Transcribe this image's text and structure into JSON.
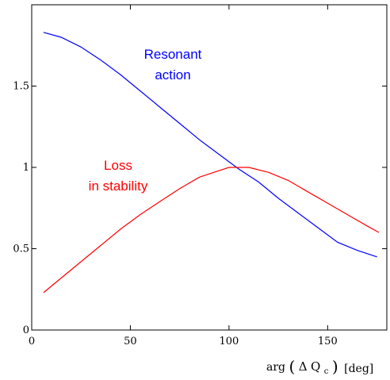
{
  "chart_data": {
    "type": "line",
    "title": "",
    "xlim": [
      0,
      180
    ],
    "ylim": [
      0,
      2
    ],
    "x_ticks": [
      0,
      50,
      100,
      150
    ],
    "y_ticks": [
      0,
      0.5,
      1,
      1.5
    ],
    "x_tick_labels": [
      "0",
      "50",
      "100",
      "150"
    ],
    "y_tick_labels": [
      "0",
      "0.5",
      "1",
      "1.5"
    ],
    "grid": false,
    "xlabel": {
      "prefix": "arg",
      "delta": "Δ",
      "q": "Q",
      "sub": "c",
      "suffix": "[deg]"
    },
    "annotations": {
      "resonant_line1": "Resonant",
      "resonant_line2": "action",
      "loss_line1": "Loss",
      "loss_line2": "in stability"
    },
    "series": [
      {
        "color": "#0000ff",
        "x": [
          6,
          15,
          25,
          35,
          45,
          55,
          65,
          75,
          85,
          95,
          105,
          115,
          125,
          135,
          145,
          155,
          165,
          175
        ],
        "y": [
          1.83,
          1.8,
          1.74,
          1.66,
          1.57,
          1.47,
          1.37,
          1.27,
          1.17,
          1.08,
          0.99,
          0.91,
          0.81,
          0.72,
          0.63,
          0.54,
          0.49,
          0.45
        ]
      },
      {
        "color": "#ff0000",
        "x": [
          6,
          15,
          25,
          35,
          45,
          55,
          65,
          75,
          85,
          95,
          100,
          105,
          110,
          120,
          130,
          140,
          150,
          160,
          170,
          176
        ],
        "y": [
          0.23,
          0.32,
          0.42,
          0.52,
          0.62,
          0.71,
          0.79,
          0.87,
          0.94,
          0.98,
          1.0,
          1.0,
          1.0,
          0.97,
          0.92,
          0.85,
          0.78,
          0.71,
          0.64,
          0.6
        ]
      }
    ]
  }
}
